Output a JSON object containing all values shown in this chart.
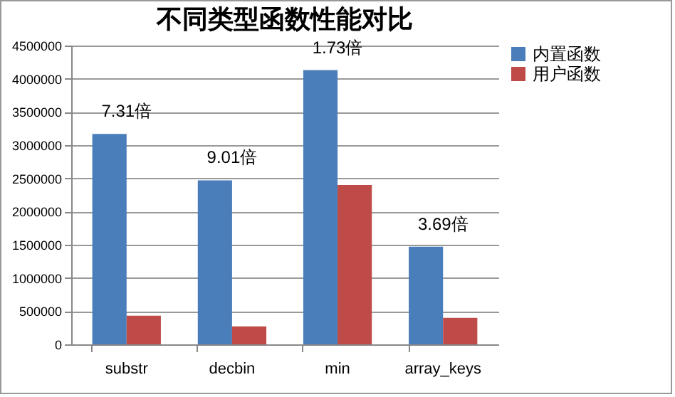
{
  "chart_data": {
    "type": "bar",
    "title": "不同类型函数性能对比",
    "categories": [
      "substr",
      "decbin",
      "min",
      "array_keys"
    ],
    "series": [
      {
        "name": "内置函数",
        "color": "#4a7ebb",
        "values": [
          3170000,
          2470000,
          4130000,
          1470000
        ]
      },
      {
        "name": "用户函数",
        "color": "#be4b48",
        "values": [
          430000,
          270000,
          2400000,
          400000
        ]
      }
    ],
    "ylim": [
      0,
      4500000
    ],
    "yticks": [
      0,
      500000,
      1000000,
      1500000,
      2000000,
      2500000,
      3000000,
      3500000,
      4000000,
      4500000
    ],
    "grid": "y",
    "legend": "right",
    "annotations": [
      {
        "text": "7.31倍",
        "x": "substr",
        "y": 3170000
      },
      {
        "text": "9.01倍",
        "x": "decbin",
        "y": 2470000
      },
      {
        "text": "1.73倍",
        "x": "min",
        "y": 4130000
      },
      {
        "text": "3.69倍",
        "x": "array_keys",
        "y": 1470000
      }
    ]
  }
}
